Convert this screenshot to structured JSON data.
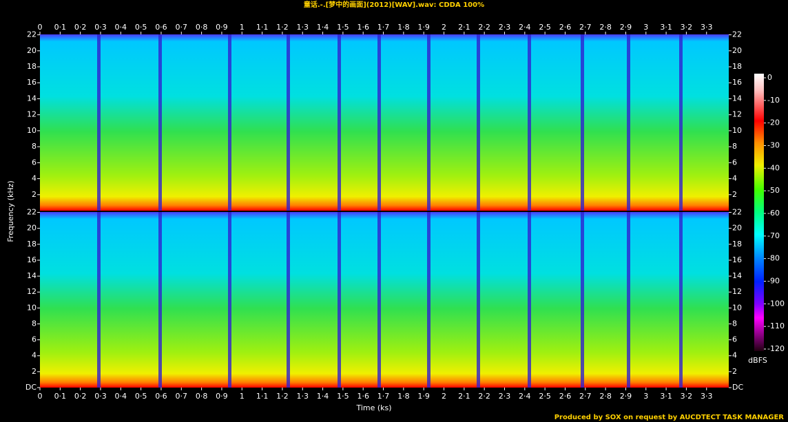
{
  "chart_data": {
    "type": "spectrogram",
    "title": "童话.-.[梦中的画面](2012)[WAV].wav: CDDA 100%",
    "x_label": "Time (ks)",
    "y_label": "Frequency (kHz)",
    "xlim": [
      0,
      3.41
    ],
    "xticks": [
      0,
      {
        "value": 0.1,
        "label": "0·1"
      },
      {
        "value": 0.2,
        "label": "0·2"
      },
      {
        "value": 0.3,
        "label": "0·3"
      },
      {
        "value": 0.4,
        "label": "0·4"
      },
      {
        "value": 0.5,
        "label": "0·5"
      },
      {
        "value": 0.6,
        "label": "0·6"
      },
      {
        "value": 0.7,
        "label": "0·7"
      },
      {
        "value": 0.8,
        "label": "0·8"
      },
      {
        "value": 0.9,
        "label": "0·9"
      },
      1,
      {
        "value": 1.1,
        "label": "1·1"
      },
      {
        "value": 1.2,
        "label": "1·2"
      },
      {
        "value": 1.3,
        "label": "1·3"
      },
      {
        "value": 1.4,
        "label": "1·4"
      },
      {
        "value": 1.5,
        "label": "1·5"
      },
      {
        "value": 1.6,
        "label": "1·6"
      },
      {
        "value": 1.7,
        "label": "1·7"
      },
      {
        "value": 1.8,
        "label": "1·8"
      },
      {
        "value": 1.9,
        "label": "1·9"
      },
      2,
      {
        "value": 2.1,
        "label": "2·1"
      },
      {
        "value": 2.2,
        "label": "2·2"
      },
      {
        "value": 2.3,
        "label": "2·3"
      },
      {
        "value": 2.4,
        "label": "2·4"
      },
      {
        "value": 2.5,
        "label": "2·5"
      },
      {
        "value": 2.6,
        "label": "2·6"
      },
      {
        "value": 2.7,
        "label": "2·7"
      },
      {
        "value": 2.8,
        "label": "2·8"
      },
      {
        "value": 2.9,
        "label": "2·9"
      },
      3,
      {
        "value": 3.1,
        "label": "3·1"
      },
      {
        "value": 3.2,
        "label": "3·2"
      },
      {
        "value": 3.3,
        "label": "3·3"
      }
    ],
    "ylim": [
      0,
      22.05
    ],
    "yticks": [
      {
        "value": 0,
        "label": "DC"
      },
      2,
      4,
      6,
      8,
      10,
      12,
      14,
      16,
      18,
      20,
      22
    ],
    "zlim": [
      -120,
      0
    ],
    "zticks": [
      0,
      -10,
      -20,
      -30,
      -40,
      -50,
      -60,
      -70,
      -80,
      -90,
      -100,
      -110,
      -120
    ],
    "colorbar_label": "dBFS",
    "footer": "Produced by SOX on request by AUCDTECT TASK MANAGER"
  }
}
